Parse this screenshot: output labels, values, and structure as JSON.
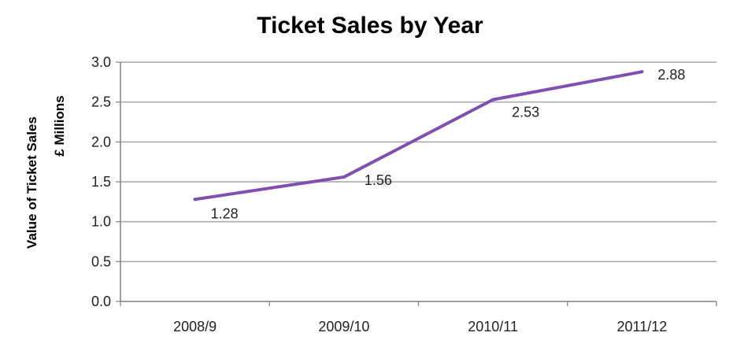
{
  "chart_data": {
    "type": "line",
    "title": "Ticket Sales by Year",
    "ylabel": "Value of Ticket Sales",
    "ylabel_unit": "£ Millions",
    "xlabel": "",
    "categories": [
      "2008/9",
      "2009/10",
      "2010/11",
      "2011/12"
    ],
    "series": [
      {
        "values": [
          1.28,
          1.56,
          2.53,
          2.88
        ],
        "color": "#8050b0"
      }
    ],
    "data_labels": [
      "1.28",
      "1.56",
      "2.53",
      "2.88"
    ],
    "ylim": [
      0,
      3.0
    ],
    "yticks": [
      "0.0",
      "0.5",
      "1.0",
      "1.5",
      "2.0",
      "2.5",
      "3.0"
    ],
    "grid": true,
    "legend": "none"
  }
}
